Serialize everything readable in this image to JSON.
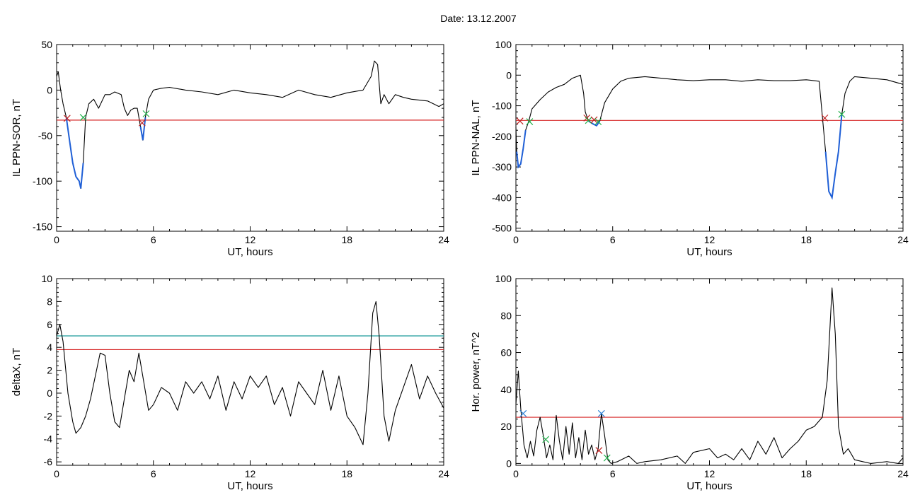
{
  "figure": {
    "title": "Date:  13.12.2007"
  },
  "colors": {
    "trace": "#000000",
    "highlight": "#1f5fd6",
    "red_line": "#d62020",
    "cyan_line": "#1a9a9a",
    "green_marker": "#22b14c",
    "red_marker": "#c02020",
    "blue_marker": "#2a7fd6"
  },
  "chart_data": [
    {
      "id": "ppn-sor",
      "type": "line",
      "xlabel": "UT, hours",
      "ylabel": "IL PPN-SOR, nT",
      "xlim": [
        0,
        24
      ],
      "ylim": [
        -155,
        50
      ],
      "xticks": [
        0,
        6,
        12,
        18,
        24
      ],
      "yticks": [
        -150,
        -100,
        -50,
        0,
        50
      ],
      "thresholds": [
        {
          "y": -33,
          "color": "red"
        }
      ],
      "series": [
        {
          "x": [
            0,
            0.1,
            0.25,
            0.4,
            0.6,
            0.8,
            1.0,
            1.2,
            1.4,
            1.5,
            1.65,
            1.8,
            2.0,
            2.3,
            2.6,
            3.0,
            3.3,
            3.6,
            4.0,
            4.2,
            4.4,
            4.6,
            4.8,
            5.0,
            5.2,
            5.35,
            5.5,
            5.7,
            6.0,
            6.5,
            7.0,
            8.0,
            9.0,
            10.0,
            11.0,
            12.0,
            13.0,
            14.0,
            15.0,
            16.0,
            17.0,
            18.0,
            19.0,
            19.5,
            19.7,
            19.9,
            20.1,
            20.3,
            20.6,
            21.0,
            21.5,
            22.0,
            23.0,
            23.7,
            24.0
          ],
          "y": [
            15,
            20,
            0,
            -15,
            -30,
            -55,
            -80,
            -95,
            -100,
            -108,
            -80,
            -30,
            -15,
            -10,
            -20,
            -5,
            -5,
            -2,
            -5,
            -20,
            -28,
            -22,
            -20,
            -20,
            -40,
            -55,
            -30,
            -10,
            0,
            2,
            3,
            0,
            -2,
            -5,
            0,
            -3,
            -5,
            -8,
            0,
            -5,
            -8,
            -3,
            0,
            15,
            32,
            28,
            -15,
            -5,
            -15,
            -5,
            -8,
            -10,
            -12,
            -18,
            -15
          ]
        }
      ],
      "highlight_segments": [
        [
          0.6,
          1.75
        ],
        [
          5.15,
          5.5
        ]
      ],
      "markers": [
        {
          "x": 0.65,
          "y": -31,
          "color": "red"
        },
        {
          "x": 1.65,
          "y": -30,
          "color": "green"
        },
        {
          "x": 5.3,
          "y": -36,
          "color": "red"
        },
        {
          "x": 5.55,
          "y": -26,
          "color": "green"
        }
      ]
    },
    {
      "id": "ppn-nal",
      "type": "line",
      "xlabel": "UT, hours",
      "ylabel": "IL PPN-NAL, nT",
      "xlim": [
        0,
        24
      ],
      "ylim": [
        -510,
        100
      ],
      "xticks": [
        0,
        6,
        12,
        18,
        24
      ],
      "yticks": [
        -500,
        -400,
        -300,
        -200,
        -100,
        0,
        100
      ],
      "thresholds": [
        {
          "y": -148,
          "color": "red"
        }
      ],
      "series": [
        {
          "x": [
            0,
            0.05,
            0.15,
            0.3,
            0.45,
            0.6,
            0.8,
            1.0,
            1.5,
            2.0,
            2.5,
            3.0,
            3.5,
            4.0,
            4.2,
            4.3,
            4.5,
            4.8,
            5.0,
            5.2,
            5.5,
            6.0,
            6.5,
            7.0,
            8.0,
            9.0,
            10.0,
            11.0,
            12.0,
            13.0,
            14.0,
            15.0,
            16.0,
            17.0,
            18.0,
            18.8,
            19.2,
            19.4,
            19.6,
            19.8,
            20.0,
            20.2,
            20.4,
            20.7,
            21.0,
            22.0,
            23.0,
            24.0
          ],
          "y": [
            -170,
            -250,
            -300,
            -290,
            -240,
            -180,
            -150,
            -110,
            -80,
            -55,
            -40,
            -30,
            -10,
            0,
            -60,
            -120,
            -150,
            -160,
            -165,
            -150,
            -90,
            -45,
            -20,
            -10,
            -5,
            -10,
            -15,
            -18,
            -15,
            -15,
            -20,
            -15,
            -18,
            -18,
            -15,
            -20,
            -250,
            -380,
            -400,
            -320,
            -250,
            -130,
            -60,
            -20,
            -5,
            -10,
            -15,
            -30
          ]
        }
      ],
      "highlight_segments": [
        [
          0.05,
          0.75
        ],
        [
          4.35,
          5.35
        ],
        [
          19.2,
          20.2
        ]
      ],
      "markers": [
        {
          "x": 0.25,
          "y": -150,
          "color": "red"
        },
        {
          "x": 0.85,
          "y": -152,
          "color": "green"
        },
        {
          "x": 4.4,
          "y": -140,
          "color": "red"
        },
        {
          "x": 4.5,
          "y": -148,
          "color": "green"
        },
        {
          "x": 4.85,
          "y": -146,
          "color": "red"
        },
        {
          "x": 5.1,
          "y": -152,
          "color": "green"
        },
        {
          "x": 19.15,
          "y": -140,
          "color": "red"
        },
        {
          "x": 20.2,
          "y": -128,
          "color": "green"
        }
      ]
    },
    {
      "id": "deltax",
      "type": "line",
      "xlabel": "UT, hours",
      "ylabel": "deltaX, nT",
      "xlim": [
        0,
        24
      ],
      "ylim": [
        -6.3,
        10
      ],
      "xticks": [
        0,
        6,
        12,
        18,
        24
      ],
      "yticks": [
        -6,
        -4,
        -2,
        0,
        2,
        4,
        6,
        8,
        10
      ],
      "thresholds": [
        {
          "y": 5,
          "color": "cyan"
        },
        {
          "y": 3.8,
          "color": "red"
        }
      ],
      "series": [
        {
          "x": [
            0,
            0.2,
            0.4,
            0.7,
            1.0,
            1.2,
            1.5,
            1.8,
            2.1,
            2.4,
            2.7,
            3.0,
            3.3,
            3.6,
            3.9,
            4.2,
            4.5,
            4.8,
            5.1,
            5.4,
            5.7,
            6.0,
            6.5,
            7.0,
            7.5,
            8.0,
            8.5,
            9.0,
            9.5,
            10.0,
            10.5,
            11.0,
            11.5,
            12.0,
            12.5,
            13.0,
            13.5,
            14.0,
            14.5,
            15.0,
            15.5,
            16.0,
            16.5,
            17.0,
            17.5,
            18.0,
            18.5,
            19.0,
            19.3,
            19.6,
            19.8,
            20.0,
            20.3,
            20.6,
            21.0,
            21.5,
            22.0,
            22.5,
            23.0,
            23.5,
            24.0
          ],
          "y": [
            5,
            6,
            4.5,
            0,
            -2.5,
            -3.5,
            -3,
            -2,
            -0.5,
            1.5,
            3.5,
            3.3,
            0,
            -2.5,
            -3,
            -0.5,
            2,
            1,
            3.5,
            1,
            -1.5,
            -1,
            0.5,
            0,
            -1.5,
            1,
            0,
            1,
            -0.5,
            1.5,
            -1.5,
            1,
            -0.5,
            1.5,
            0.5,
            1.5,
            -1,
            0.5,
            -2,
            1,
            0,
            -1,
            2,
            -1.5,
            1.5,
            -2,
            -3,
            -4.5,
            0,
            7,
            8,
            5,
            -2,
            -4.2,
            -1.5,
            0.5,
            2.5,
            -0.5,
            1.5,
            0,
            -1.3
          ]
        }
      ],
      "highlight_segments": [],
      "markers": []
    },
    {
      "id": "hor-power",
      "type": "line",
      "xlabel": "UT, hours",
      "ylabel": "Hor. power, nT^2",
      "xlim": [
        0,
        24
      ],
      "ylim": [
        -1,
        100
      ],
      "xticks": [
        0,
        6,
        12,
        18,
        24
      ],
      "yticks": [
        0,
        20,
        40,
        60,
        80,
        100
      ],
      "thresholds": [
        {
          "y": 25,
          "color": "red"
        }
      ],
      "series": [
        {
          "x": [
            0,
            0.15,
            0.3,
            0.5,
            0.7,
            0.9,
            1.1,
            1.3,
            1.5,
            1.7,
            1.9,
            2.1,
            2.3,
            2.5,
            2.7,
            2.9,
            3.1,
            3.3,
            3.5,
            3.7,
            3.9,
            4.1,
            4.3,
            4.5,
            4.7,
            4.9,
            5.1,
            5.3,
            5.5,
            5.7,
            5.9,
            6.3,
            7.0,
            7.5,
            8.0,
            9.0,
            10.0,
            10.5,
            11.0,
            12.0,
            12.5,
            13.0,
            13.5,
            14.0,
            14.5,
            15.0,
            15.5,
            16.0,
            16.5,
            17.0,
            17.5,
            18.0,
            18.5,
            19.0,
            19.3,
            19.6,
            19.8,
            20.0,
            20.3,
            20.6,
            21.0,
            21.5,
            22.0,
            23.0,
            23.7,
            24.0
          ],
          "y": [
            32,
            50,
            30,
            10,
            3,
            12,
            4,
            18,
            25,
            15,
            3,
            10,
            2,
            26,
            12,
            2,
            20,
            5,
            22,
            3,
            14,
            2,
            18,
            5,
            10,
            2,
            8,
            27,
            15,
            2,
            0,
            1,
            4,
            0,
            1,
            2,
            4,
            0,
            6,
            8,
            3,
            5,
            2,
            8,
            2,
            12,
            5,
            14,
            3,
            8,
            12,
            18,
            20,
            25,
            45,
            95,
            70,
            20,
            5,
            8,
            2,
            1,
            0,
            1,
            0,
            3
          ]
        }
      ],
      "highlight_segments": [],
      "markers": [
        {
          "x": 0.45,
          "y": 27,
          "color": "blue"
        },
        {
          "x": 1.85,
          "y": 13,
          "color": "green"
        },
        {
          "x": 5.15,
          "y": 7,
          "color": "red"
        },
        {
          "x": 5.3,
          "y": 27,
          "color": "blue"
        },
        {
          "x": 5.65,
          "y": 3,
          "color": "green"
        }
      ]
    }
  ]
}
